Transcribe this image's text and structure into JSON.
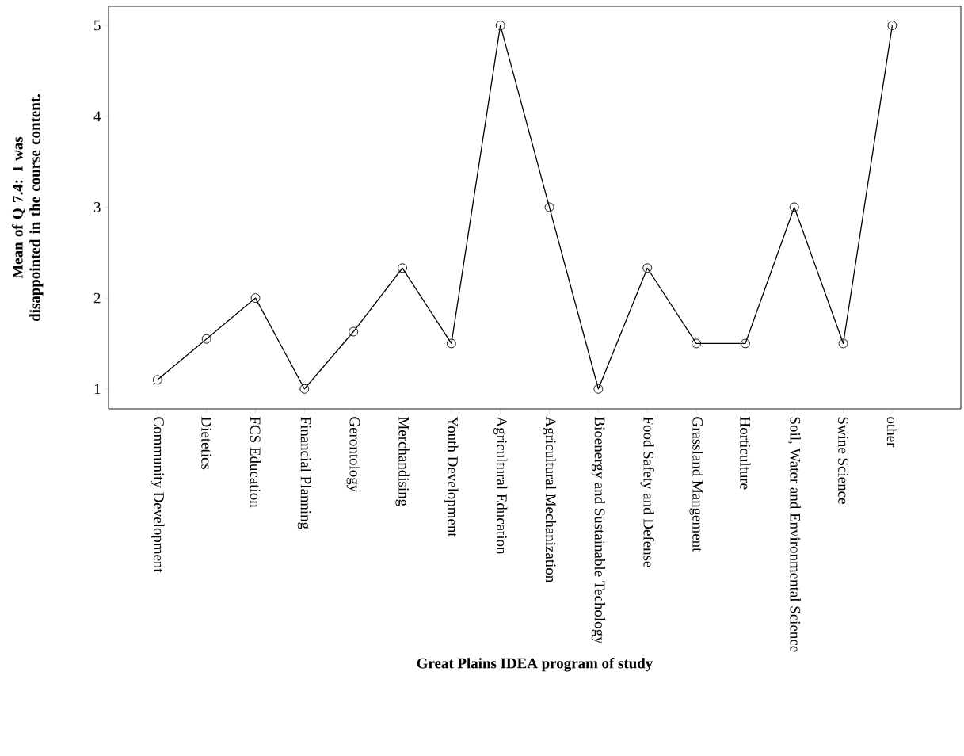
{
  "chart_data": {
    "type": "line",
    "xlabel": "Great Plains IDEA program of study",
    "ylabel": "Mean of Q 7.4: I was disappointed in the course content.",
    "categories": [
      "Community Development",
      "Dietetics",
      "FCS Education",
      "Financial Planning",
      "Gerontology",
      "Merchandising",
      "Youth Development",
      "Agricultural Education",
      "Agricultural Mechanization",
      "Bioenergy and Sustainable Techology",
      "Food Safety and Defense",
      "Grassland Mangement",
      "Horticulture",
      "Soil, Water and Environmental Science",
      "Swine Science",
      "other"
    ],
    "values": [
      1.1,
      1.55,
      2.0,
      1.0,
      1.63,
      2.33,
      1.5,
      5.0,
      3.0,
      1.0,
      2.33,
      1.5,
      1.5,
      3.0,
      1.5,
      5.0
    ],
    "color": "#000000",
    "marker": "circle",
    "line_style": "solid",
    "grid": false,
    "ylim": [
      0.78,
      5.21
    ],
    "yticks": [
      1,
      2,
      3,
      4,
      5
    ]
  }
}
